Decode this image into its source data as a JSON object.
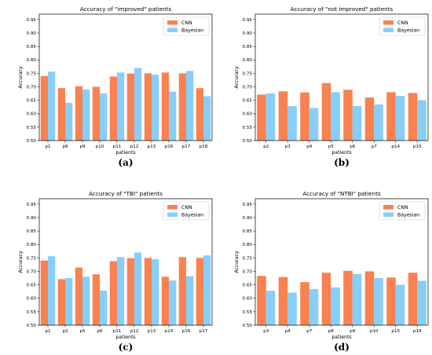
{
  "colors": {
    "cnn": "#fa8150",
    "bayesian": "#87cefa"
  },
  "chart_data": [
    {
      "type": "bar",
      "title": "Accuracy of \"improved\" patients",
      "xlabel": "patients",
      "ylabel": "Accuracy",
      "caption": "(a)",
      "ylim": [
        0.5,
        0.97
      ],
      "yticks": [
        "0.50",
        "0.55",
        "0.60",
        "0.65",
        "0.70",
        "0.75",
        "0.80",
        "0.85",
        "0.90",
        "0.95"
      ],
      "legend_position": "top-right",
      "categories": [
        "p1",
        "p8",
        "p9",
        "p10",
        "p11",
        "p12",
        "p13",
        "p16",
        "p17",
        "p18"
      ],
      "series": [
        {
          "name": "CNN",
          "values": [
            0.74,
            0.695,
            0.702,
            0.7,
            0.738,
            0.749,
            0.75,
            0.753,
            0.75,
            0.695
          ]
        },
        {
          "name": "Bayesian",
          "values": [
            0.756,
            0.64,
            0.69,
            0.675,
            0.753,
            0.77,
            0.745,
            0.682,
            0.759,
            0.665
          ]
        }
      ]
    },
    {
      "type": "bar",
      "title": "Accuracy of \"not improved\" patients",
      "xlabel": "patients",
      "ylabel": "Accuracy",
      "caption": "(b)",
      "ylim": [
        0.5,
        0.97
      ],
      "yticks": [
        "0.50",
        "0.55",
        "0.60",
        "0.65",
        "0.70",
        "0.75",
        "0.80",
        "0.85",
        "0.90",
        "0.95"
      ],
      "legend_position": "top-right",
      "categories": [
        "p2",
        "p3",
        "p4",
        "p5",
        "p6",
        "p7",
        "p14",
        "p15"
      ],
      "series": [
        {
          "name": "CNN",
          "values": [
            0.671,
            0.683,
            0.679,
            0.714,
            0.689,
            0.66,
            0.68,
            0.677
          ]
        },
        {
          "name": "Bayesian",
          "values": [
            0.675,
            0.628,
            0.621,
            0.68,
            0.628,
            0.634,
            0.666,
            0.65
          ]
        }
      ]
    },
    {
      "type": "bar",
      "title": "Accuracy of \"TBI\" patients",
      "xlabel": "patients",
      "ylabel": "Accuracy",
      "caption": "(c)",
      "ylim": [
        0.5,
        0.97
      ],
      "yticks": [
        "0.50",
        "0.55",
        "0.60",
        "0.65",
        "0.70",
        "0.75",
        "0.80",
        "0.85",
        "0.90",
        "0.95"
      ],
      "legend_position": "top-right",
      "categories": [
        "p1",
        "p2",
        "p5",
        "p6",
        "p11",
        "p12",
        "p13",
        "p14",
        "p16",
        "p17"
      ],
      "series": [
        {
          "name": "CNN",
          "values": [
            0.74,
            0.671,
            0.714,
            0.689,
            0.738,
            0.749,
            0.75,
            0.68,
            0.753,
            0.75
          ]
        },
        {
          "name": "Bayesian",
          "values": [
            0.756,
            0.675,
            0.68,
            0.628,
            0.753,
            0.77,
            0.745,
            0.666,
            0.682,
            0.759
          ]
        }
      ]
    },
    {
      "type": "bar",
      "title": "Accuracy of \"NTBI\" patients",
      "xlabel": "patients",
      "ylabel": "Accuracy",
      "caption": "(d)",
      "ylim": [
        0.5,
        0.97
      ],
      "yticks": [
        "0.50",
        "0.55",
        "0.60",
        "0.65",
        "0.70",
        "0.75",
        "0.80",
        "0.85",
        "0.90",
        "0.95"
      ],
      "legend_position": "top-right",
      "categories": [
        "p3",
        "p4",
        "p7",
        "p8",
        "p9",
        "p10",
        "p15",
        "p18"
      ],
      "series": [
        {
          "name": "CNN",
          "values": [
            0.683,
            0.679,
            0.66,
            0.695,
            0.702,
            0.7,
            0.677,
            0.695
          ]
        },
        {
          "name": "Bayesian",
          "values": [
            0.628,
            0.621,
            0.634,
            0.64,
            0.69,
            0.675,
            0.65,
            0.665
          ]
        }
      ]
    }
  ]
}
